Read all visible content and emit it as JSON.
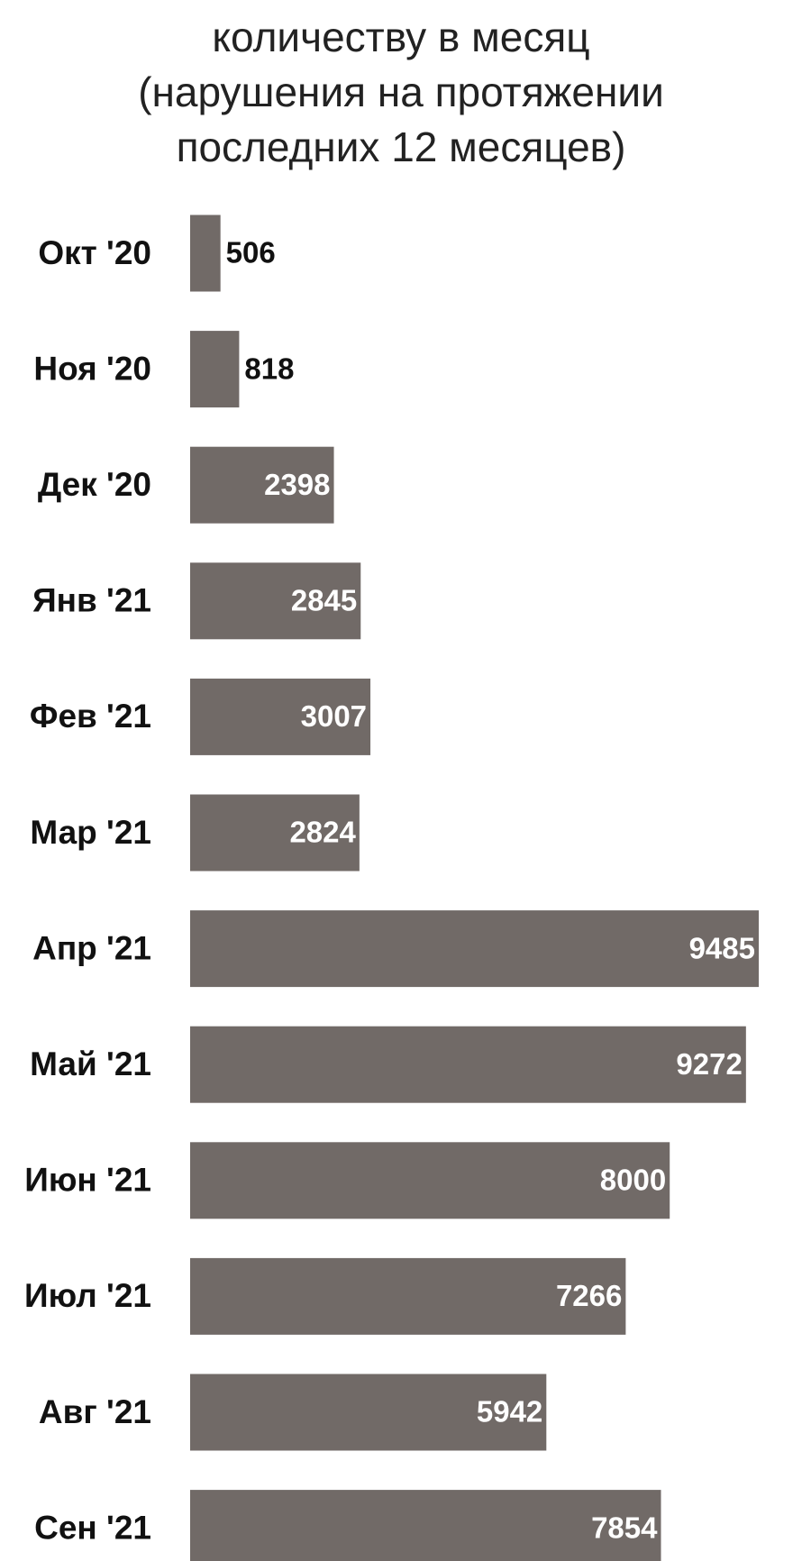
{
  "chart_data": {
    "type": "bar",
    "orientation": "horizontal",
    "title": [
      "количеству в месяц",
      "(нарушения на протяжении",
      "последних 12 месяцев)"
    ],
    "categories": [
      "Окт '20",
      "Ноя '20",
      "Дек '20",
      "Янв '21",
      "Фев '21",
      "Мар '21",
      "Апр '21",
      "Май '21",
      "Июн '21",
      "Июл '21",
      "Авг '21",
      "Сен '21"
    ],
    "values": [
      506,
      818,
      2398,
      2845,
      3007,
      2824,
      9485,
      9272,
      8000,
      7266,
      5942,
      7854
    ],
    "color": "#716a67"
  }
}
